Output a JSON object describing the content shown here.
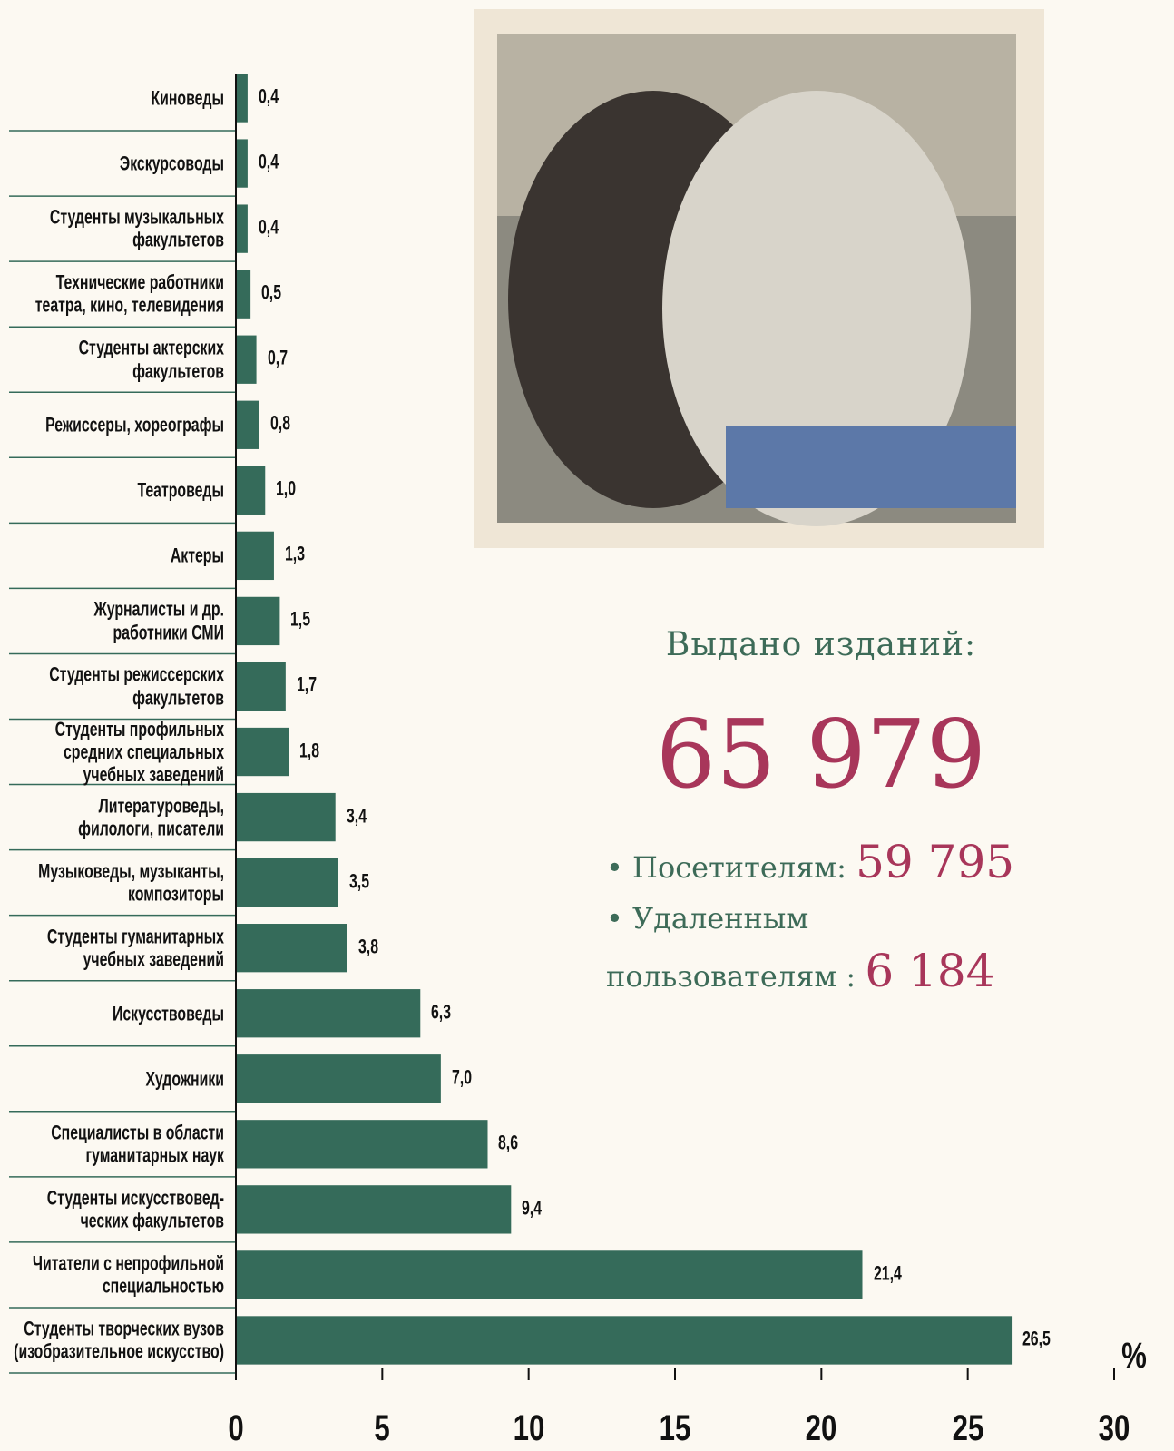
{
  "chart_data": {
    "type": "barh",
    "categories": [
      "Киноведы",
      "Экскурсоводы",
      "Студенты музыкальных\nфакультетов",
      "Технические работники\nтеатра, кино, телевидения",
      "Студенты актерских\nфакультетов",
      "Режиссеры, хореографы",
      "Театроведы",
      "Актеры",
      "Журналисты и др.\nработники СМИ",
      "Студенты режиссерских\nфакультетов",
      "Студенты профильных\nсредних специальных\nучебных заведений",
      "Литературоведы,\nфилологи, писатели",
      "Музыковеды, музыканты,\nкомпозиторы",
      "Студенты гуманитарных\nучебных заведений",
      "Искусствоведы",
      "Художники",
      "Специалисты в области\nгуманитарных наук",
      "Студенты искусствовед-\nческих факультетов",
      "Читатели с непрофильной\nспециальностью",
      "Студенты творческих вузов\n(изобразительное искусство)"
    ],
    "values": [
      0.4,
      0.4,
      0.4,
      0.5,
      0.7,
      0.8,
      1.0,
      1.3,
      1.5,
      1.7,
      1.8,
      3.4,
      3.5,
      3.8,
      6.3,
      7.0,
      8.6,
      9.4,
      21.4,
      26.5
    ],
    "value_labels": [
      "0,4",
      "0,4",
      "0,4",
      "0,5",
      "0,7",
      "0,8",
      "1,0",
      "1,3",
      "1,5",
      "1,7",
      "1,8",
      "3,4",
      "3,5",
      "3,8",
      "6,3",
      "7,0",
      "8,6",
      "9,4",
      "21,4",
      "26,5"
    ],
    "color": "#356b5a",
    "xlim": [
      0,
      30
    ],
    "xticks": [
      0,
      5,
      10,
      15,
      20,
      25,
      30
    ],
    "xlabel": "%"
  },
  "stats": {
    "title": "Выдано изданий:",
    "total": "65 979",
    "items": [
      {
        "label": "Посетителям:",
        "value": "59 795"
      },
      {
        "label": "Удаленным пользователям :",
        "value": "6 184"
      }
    ]
  }
}
